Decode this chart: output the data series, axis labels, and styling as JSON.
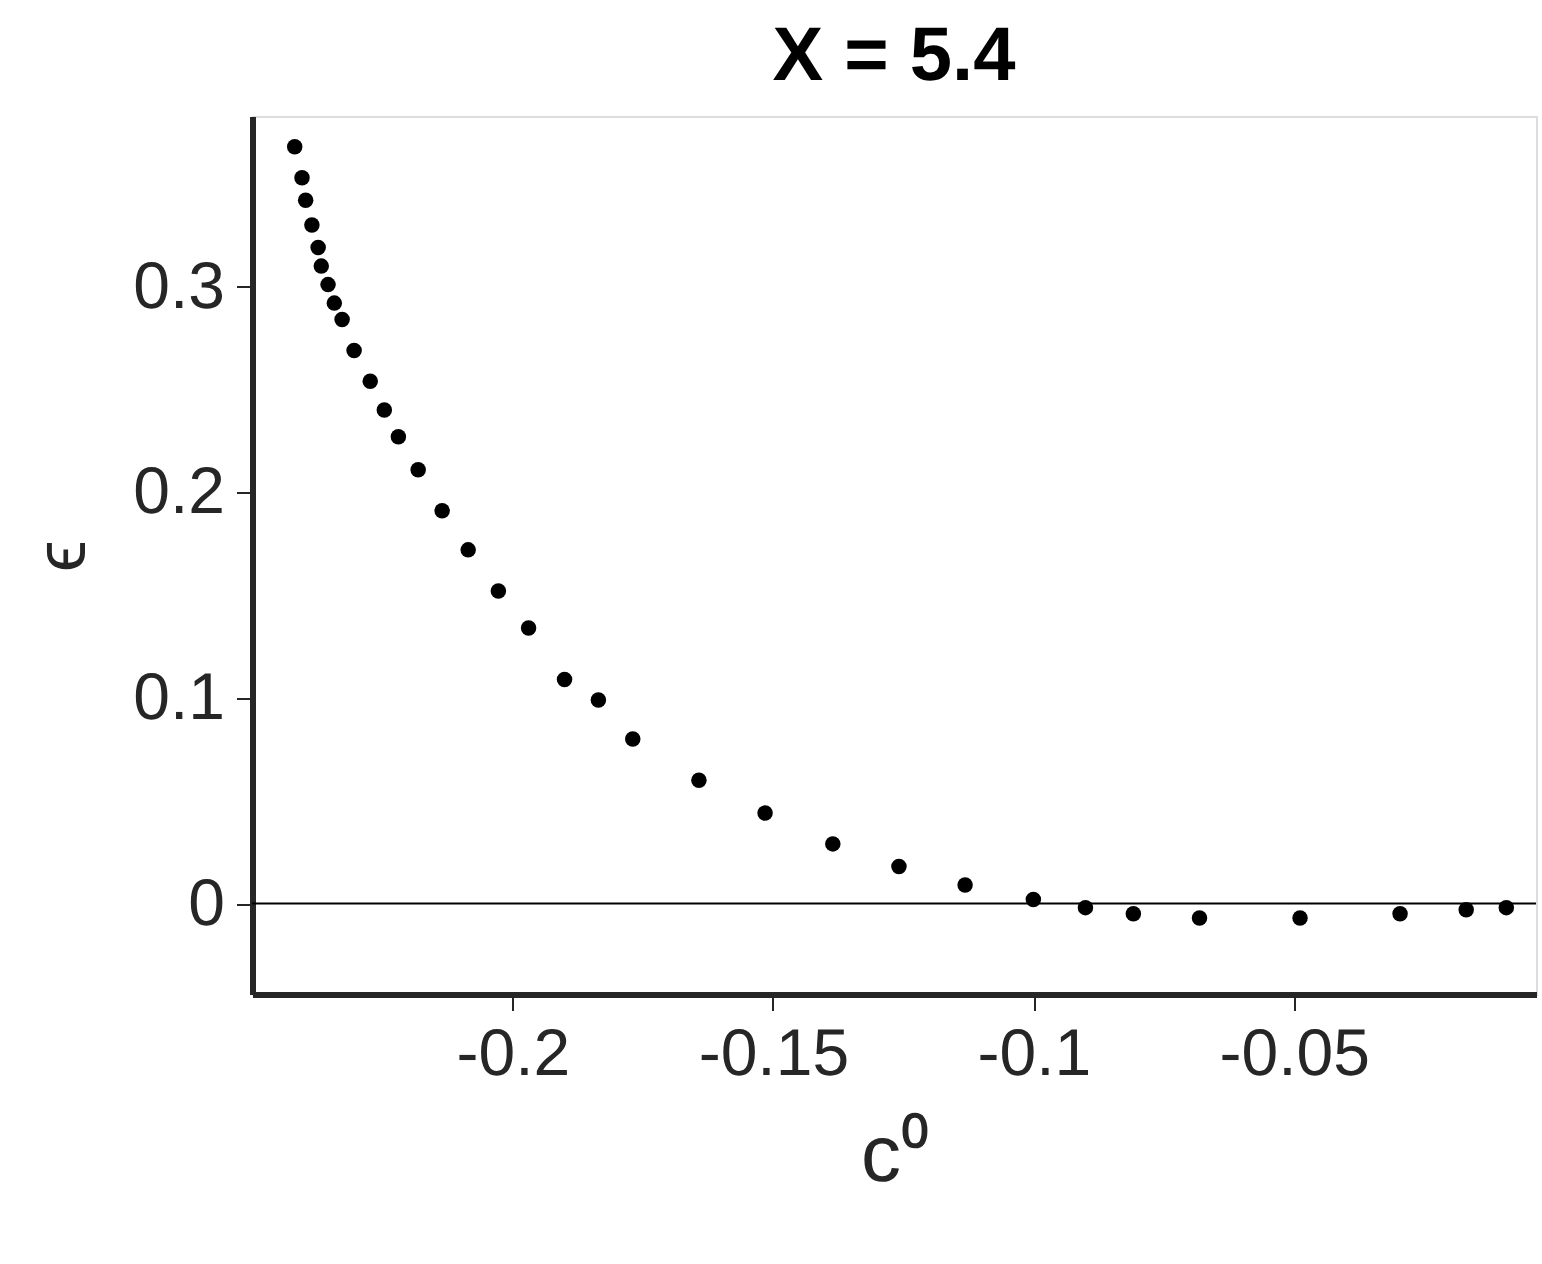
{
  "chart_data": {
    "type": "scatter",
    "title": "X = 5.4",
    "xlabel": "c⁰",
    "ylabel": "ϵ",
    "x": [
      -0.2418,
      -0.2404,
      -0.2397,
      -0.2385,
      -0.2373,
      -0.2367,
      -0.2354,
      -0.2342,
      -0.2327,
      -0.2304,
      -0.2273,
      -0.2246,
      -0.2219,
      -0.2181,
      -0.2135,
      -0.2085,
      -0.2027,
      -0.1969,
      -0.19,
      -0.1835,
      -0.1769,
      -0.1642,
      -0.1515,
      -0.1385,
      -0.1258,
      -0.1131,
      -0.1,
      -0.09,
      -0.0808,
      -0.0681,
      -0.0488,
      -0.0296,
      -0.0169,
      -0.0092
    ],
    "series": [
      {
        "color": "#000000",
        "values": [
          0.368,
          0.353,
          0.342,
          0.33,
          0.319,
          0.31,
          0.301,
          0.292,
          0.284,
          0.269,
          0.254,
          0.24,
          0.227,
          0.211,
          0.191,
          0.172,
          0.152,
          0.134,
          0.109,
          0.099,
          0.08,
          0.06,
          0.044,
          0.029,
          0.018,
          0.009,
          0.002,
          -0.002,
          -0.005,
          -0.007,
          -0.007,
          -0.005,
          -0.003,
          -0.002
        ]
      }
    ],
    "xlim": [
      -0.25,
      -0.0035
    ],
    "xticks": [
      -0.2,
      -0.15,
      -0.1,
      -0.05
    ],
    "ylim": [
      -0.044,
      0.383
    ],
    "yticks": [
      0,
      0.1,
      0.2,
      0.3
    ],
    "ref_lines": [
      {
        "axis": "y",
        "value": 0,
        "color": "#000000",
        "line_style": "solid"
      }
    ],
    "marker": "circle",
    "grid": false
  }
}
